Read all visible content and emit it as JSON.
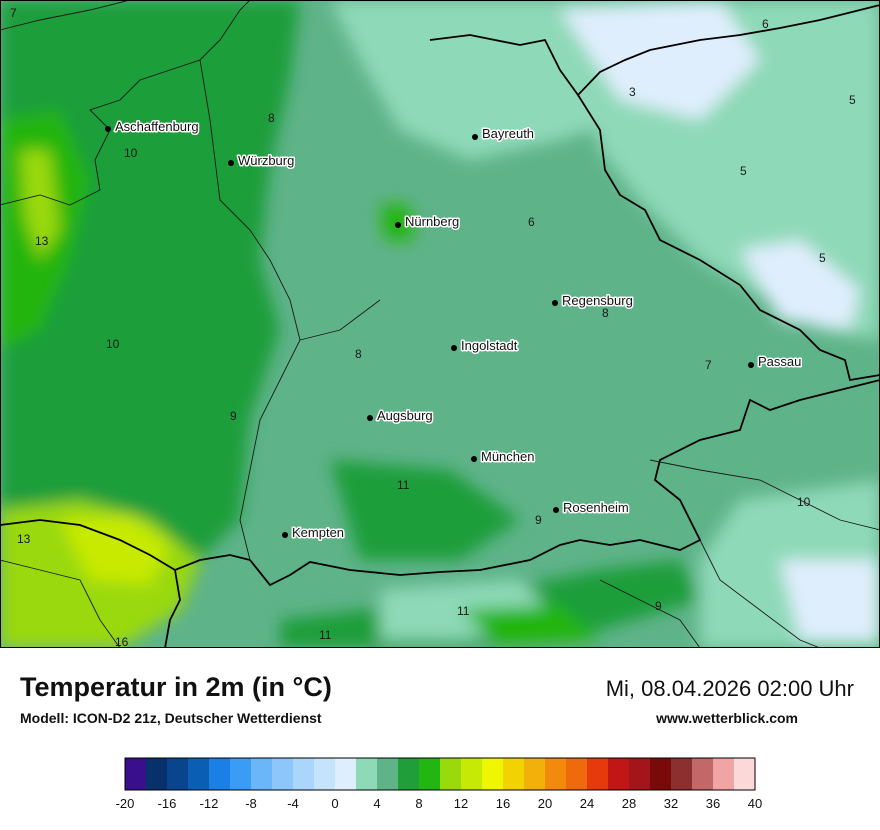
{
  "header": {
    "title": "Temperatur in 2m (in °C)",
    "model": "Modell: ICON-D2 21z, Deutscher Wetterdienst",
    "datetime": "Mi, 08.04.2026 02:00 Uhr",
    "website": "www.wetterblick.com"
  },
  "cities": [
    {
      "name": "Aschaffenburg"
    },
    {
      "name": "Würzburg"
    },
    {
      "name": "Bayreuth"
    },
    {
      "name": "Nürnberg"
    },
    {
      "name": "Regensburg"
    },
    {
      "name": "Ingolstadt"
    },
    {
      "name": "Passau"
    },
    {
      "name": "Augsburg"
    },
    {
      "name": "München"
    },
    {
      "name": "Rosenheim"
    },
    {
      "name": "Kempten"
    }
  ],
  "value_labels": [
    "7",
    "6",
    "3",
    "5",
    "5",
    "5",
    "8",
    "10",
    "13",
    "6",
    "8",
    "10",
    "8",
    "7",
    "9",
    "11",
    "9",
    "10",
    "13",
    "11",
    "11",
    "9",
    "16"
  ],
  "legend": {
    "colors": [
      "#3a0f8c",
      "#08306b",
      "#08458c",
      "#0a5fb4",
      "#1a80e6",
      "#3b9cf5",
      "#6ab6f8",
      "#8cc6fa",
      "#aad6fb",
      "#c6e3fc",
      "#dfeefd",
      "#8ed9b8",
      "#5fb389",
      "#1f9e3a",
      "#23b511",
      "#9ad90a",
      "#c7ea05",
      "#eef700",
      "#f2d200",
      "#f2b10a",
      "#f28a0c",
      "#ee6a0c",
      "#e63a0c",
      "#c01616",
      "#a3151a",
      "#7a0a0a",
      "#8b2f2f",
      "#c26868",
      "#f0a4a4",
      "#fcd9d9"
    ],
    "ticks": [
      "-20",
      "-16",
      "-12",
      "-8",
      "-4",
      "0",
      "4",
      "8",
      "12",
      "16",
      "20",
      "24",
      "28",
      "32",
      "36",
      "40"
    ]
  }
}
